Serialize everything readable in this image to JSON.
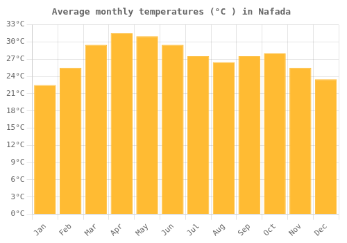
{
  "chart_data": {
    "type": "bar",
    "title": "Average monthly temperatures (°C ) in Nafada",
    "categories": [
      "Jan",
      "Feb",
      "Mar",
      "Apr",
      "May",
      "Jun",
      "Jul",
      "Aug",
      "Sep",
      "Oct",
      "Nov",
      "Dec"
    ],
    "values": [
      22.5,
      25.5,
      29.5,
      31.5,
      31.0,
      29.5,
      27.5,
      26.5,
      27.5,
      28.0,
      25.5,
      23.5
    ],
    "color": "#FFBB33",
    "ylim": [
      0,
      33
    ],
    "yticks": [
      {
        "value": 0,
        "label": "0°C"
      },
      {
        "value": 3,
        "label": "3°C"
      },
      {
        "value": 6,
        "label": "6°C"
      },
      {
        "value": 9,
        "label": "9°C"
      },
      {
        "value": 12,
        "label": "12°C"
      },
      {
        "value": 15,
        "label": "15°C"
      },
      {
        "value": 18,
        "label": "18°C"
      },
      {
        "value": 21,
        "label": "21°C"
      },
      {
        "value": 24,
        "label": "24°C"
      },
      {
        "value": 27,
        "label": "27°C"
      },
      {
        "value": 30,
        "label": "30°C"
      },
      {
        "value": 33,
        "label": "33°C"
      }
    ],
    "grid": true
  }
}
